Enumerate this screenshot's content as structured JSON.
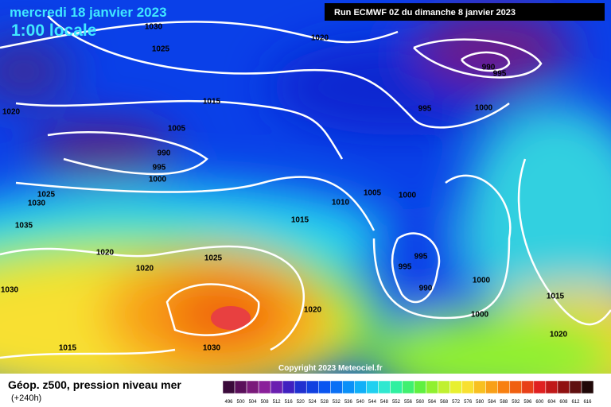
{
  "header": {
    "date": "mercredi 18 janvier 2023",
    "time": "1:00 locale",
    "run": "Run ECMWF 0Z du dimanche 8 janvier 2023"
  },
  "map": {
    "isobar_labels": [
      1030,
      1025,
      1020,
      1015,
      1005,
      990,
      995,
      1000,
      1020,
      1025,
      1030,
      1035,
      1020,
      1020,
      1025,
      1030,
      1015,
      1030,
      1015,
      1010,
      1005,
      1000,
      995,
      1000,
      990,
      995,
      995,
      995,
      990,
      1000,
      1000,
      1015,
      1020,
      1020
    ],
    "copyright": "Copyright 2023 Meteociel.fr"
  },
  "footer": {
    "title": "Géop. z500, pression niveau mer",
    "lead": "(+240h)"
  },
  "legend": {
    "values": [
      496,
      500,
      504,
      508,
      512,
      516,
      520,
      524,
      528,
      532,
      536,
      540,
      544,
      548,
      552,
      556,
      560,
      564,
      568,
      572,
      576,
      580,
      584,
      588,
      592,
      596,
      600,
      604,
      608,
      612,
      616
    ],
    "colors": [
      "#3a0a3a",
      "#5a0f5a",
      "#7a1a7a",
      "#8a1f9a",
      "#6a1fb0",
      "#4020c0",
      "#2030d0",
      "#1040e0",
      "#0a55f0",
      "#0a70f5",
      "#0a90f8",
      "#10b0f8",
      "#20d0f0",
      "#30e8d0",
      "#30f0a0",
      "#40f070",
      "#60f040",
      "#90f030",
      "#c0f030",
      "#e8f030",
      "#f8e030",
      "#f8c020",
      "#f8a018",
      "#f88010",
      "#f06010",
      "#e84018",
      "#e02020",
      "#c01818",
      "#901010",
      "#601010",
      "#200808"
    ]
  }
}
